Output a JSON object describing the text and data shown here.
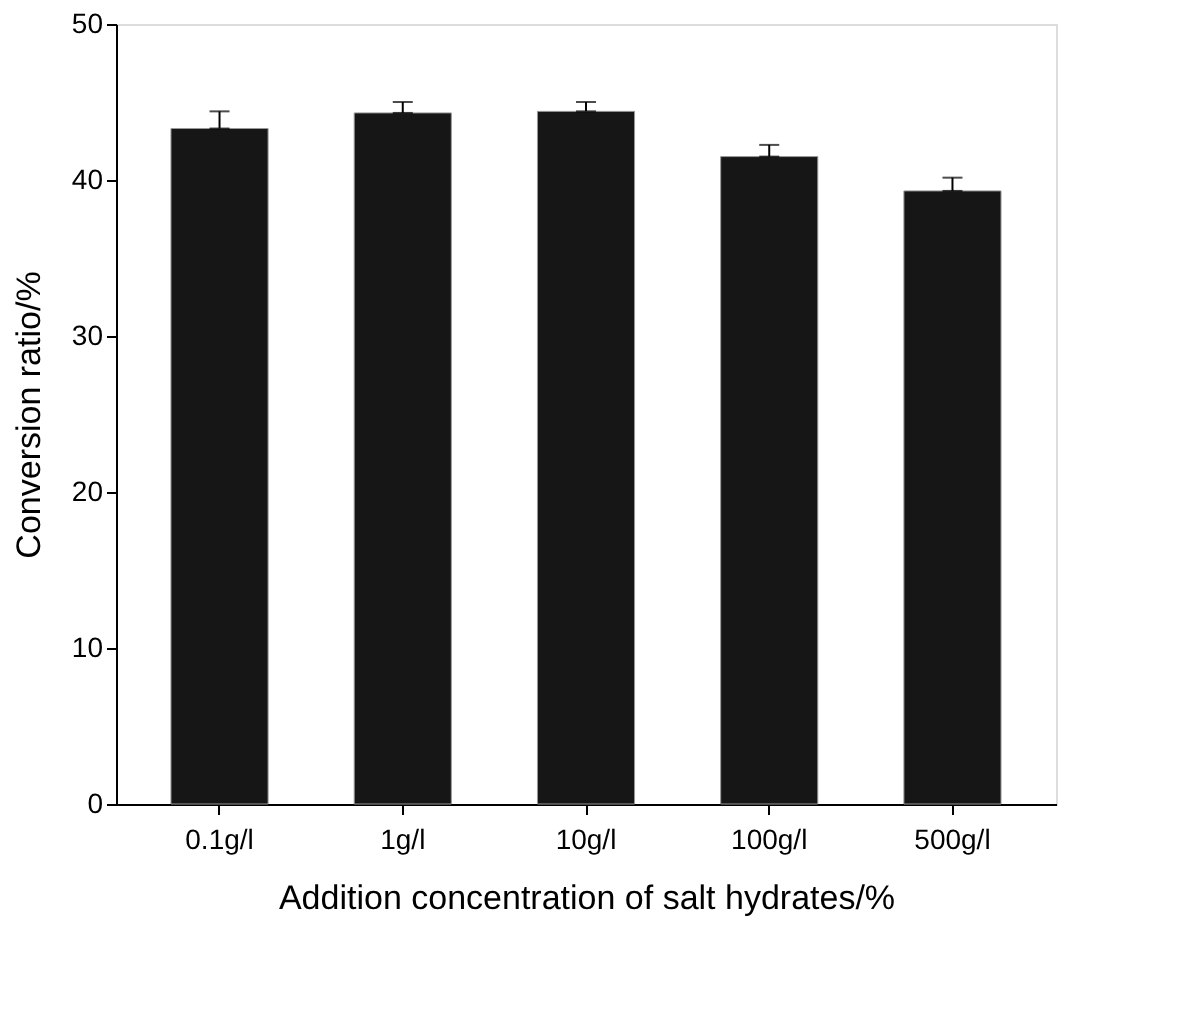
{
  "chart_data": {
    "type": "bar",
    "xlabel": "Addition concentration of salt hydrates/%",
    "ylabel": "Conversion ratio/%",
    "categories": [
      "0.1g/l",
      "1g/l",
      "10g/l",
      "100g/l",
      "500g/l"
    ],
    "values": [
      43.3,
      44.3,
      44.4,
      41.5,
      39.3
    ],
    "errors": [
      1.1,
      0.7,
      0.6,
      0.75,
      0.85
    ],
    "color": "#161616",
    "ylim": [
      0,
      50
    ],
    "yticks": [
      0,
      10,
      20,
      30,
      40,
      50
    ],
    "grid": false
  }
}
